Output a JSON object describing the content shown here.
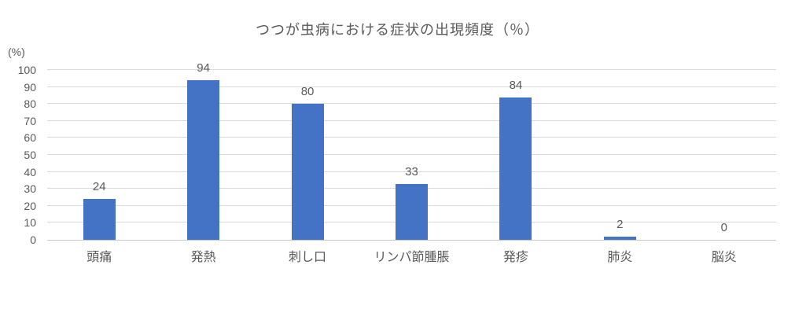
{
  "chart_data": {
    "type": "bar",
    "title": "つつが虫病における症状の出現頻度（％）",
    "categories": [
      "頭痛",
      "発熱",
      "刺し口",
      "リンパ節腫脹",
      "発疹",
      "肺炎",
      "脳炎"
    ],
    "values": [
      24,
      94,
      80,
      33,
      84,
      2,
      0
    ],
    "xlabel": "",
    "ylabel": "(%)",
    "ylim": [
      0,
      100
    ],
    "ytick_step": 10,
    "grid": true,
    "legend": "none",
    "bar_color": "#4472C4",
    "text_color": "#595959",
    "gridline_color": "#D9D9D9",
    "background_color": "#FFFFFF"
  }
}
